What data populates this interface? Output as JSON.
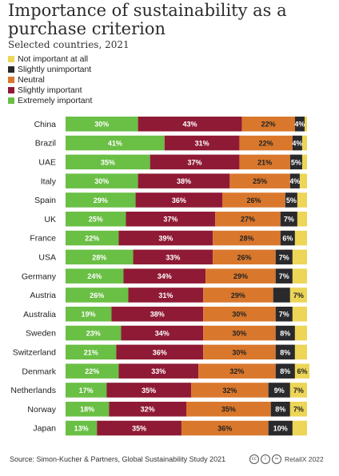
{
  "title": "Importance of sustainability as a purchase criterion",
  "subtitle": "Selected countries, 2021",
  "legend": [
    {
      "label": "Not important at all",
      "color": "#ecd557"
    },
    {
      "label": "Slightly unimportant",
      "color": "#2a2a2c"
    },
    {
      "label": "Neutral",
      "color": "#d9782d"
    },
    {
      "label": "Slightly important",
      "color": "#8f1a35"
    },
    {
      "label": "Extremely important",
      "color": "#6abf45"
    }
  ],
  "footer": {
    "source": "Source: Simon-Kucher & Partners, Global Sustainability Study 2021",
    "brand": "RetailX 2022",
    "license_icons": [
      "cc-icon",
      "by-icon",
      "nd-icon"
    ]
  },
  "chart_data": {
    "type": "bar",
    "orientation": "horizontal",
    "stacked": true,
    "xlim": [
      0,
      100
    ],
    "categories": [
      "China",
      "Brazil",
      "UAE",
      "Italy",
      "Spain",
      "UK",
      "France",
      "USA",
      "Germany",
      "Austria",
      "Australia",
      "Sweden",
      "Switzerland",
      "Denmark",
      "Netherlands",
      "Norway",
      "Japan"
    ],
    "series": [
      {
        "name": "Extremely important",
        "color": "#6abf45",
        "label_color": "#ffffff",
        "values": [
          30,
          41,
          35,
          30,
          29,
          25,
          22,
          28,
          24,
          26,
          19,
          23,
          21,
          22,
          17,
          18,
          13
        ]
      },
      {
        "name": "Slightly important",
        "color": "#8f1a35",
        "label_color": "#ffffff",
        "values": [
          43,
          31,
          37,
          38,
          36,
          37,
          39,
          33,
          34,
          31,
          38,
          34,
          36,
          33,
          35,
          32,
          35
        ]
      },
      {
        "name": "Neutral",
        "color": "#d9782d",
        "label_color": "#222222",
        "values": [
          22,
          22,
          21,
          25,
          26,
          27,
          28,
          26,
          29,
          29,
          30,
          30,
          30,
          32,
          32,
          35,
          36
        ]
      },
      {
        "name": "Slightly unimportant",
        "color": "#2a2a2c",
        "label_color": "#ffffff",
        "values": [
          4,
          4,
          5,
          4,
          5,
          7,
          6,
          7,
          7,
          7,
          7,
          8,
          8,
          8,
          9,
          8,
          10
        ]
      },
      {
        "name": "Not important at all",
        "color": "#ecd557",
        "label_color": "#222222",
        "values": [
          1,
          2,
          2,
          3,
          4,
          4,
          5,
          6,
          6,
          7,
          6,
          5,
          5,
          6,
          7,
          7,
          6
        ]
      }
    ],
    "labels": [
      [
        "30%",
        "43%",
        "22%",
        "4%",
        ""
      ],
      [
        "41%",
        "31%",
        "22%",
        "4%",
        ""
      ],
      [
        "35%",
        "37%",
        "21%",
        "5%",
        ""
      ],
      [
        "30%",
        "38%",
        "25%",
        "4%",
        ""
      ],
      [
        "29%",
        "36%",
        "26%",
        "5%",
        ""
      ],
      [
        "25%",
        "37%",
        "27%",
        "7%",
        ""
      ],
      [
        "22%",
        "39%",
        "28%",
        "6%",
        ""
      ],
      [
        "28%",
        "33%",
        "26%",
        "7%",
        ""
      ],
      [
        "24%",
        "34%",
        "29%",
        "7%",
        ""
      ],
      [
        "26%",
        "31%",
        "29%",
        "",
        "7%"
      ],
      [
        "19%",
        "38%",
        "30%",
        "7%",
        ""
      ],
      [
        "23%",
        "34%",
        "30%",
        "8%",
        ""
      ],
      [
        "21%",
        "36%",
        "30%",
        "8%",
        ""
      ],
      [
        "22%",
        "33%",
        "32%",
        "8%",
        "6%"
      ],
      [
        "17%",
        "35%",
        "32%",
        "9%",
        "7%"
      ],
      [
        "18%",
        "32%",
        "35%",
        "8%",
        "7%"
      ],
      [
        "13%",
        "35%",
        "36%",
        "10%",
        ""
      ]
    ]
  }
}
